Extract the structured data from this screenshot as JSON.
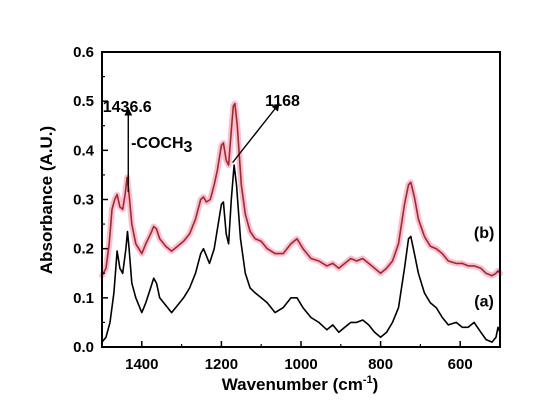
{
  "chart_data": {
    "type": "line",
    "title": "",
    "xlabel": "Wavenumber (cm",
    "xlabel_sup": "-1",
    "xlabel_close": ")",
    "ylabel": "Absorbance (A.U.)",
    "xlim": [
      1500,
      500
    ],
    "ylim": [
      0.0,
      0.6
    ],
    "x_inverted": true,
    "xticks": [
      1400,
      1200,
      1000,
      800,
      600
    ],
    "yticks": [
      0.0,
      0.1,
      0.2,
      0.3,
      0.4,
      0.5,
      0.6
    ],
    "ytick_labels": [
      "0.0",
      "0.1",
      "0.2",
      "0.3",
      "0.4",
      "0.5",
      "0.6"
    ],
    "grid": false,
    "series": [
      {
        "name": "(a)",
        "color": "#000000",
        "points": [
          [
            1500,
            0.01
          ],
          [
            1490,
            0.02
          ],
          [
            1480,
            0.05
          ],
          [
            1470,
            0.11
          ],
          [
            1462,
            0.195
          ],
          [
            1455,
            0.16
          ],
          [
            1448,
            0.15
          ],
          [
            1440,
            0.2
          ],
          [
            1436,
            0.235
          ],
          [
            1432,
            0.2
          ],
          [
            1425,
            0.13
          ],
          [
            1415,
            0.1
          ],
          [
            1400,
            0.07
          ],
          [
            1390,
            0.09
          ],
          [
            1378,
            0.12
          ],
          [
            1370,
            0.14
          ],
          [
            1363,
            0.13
          ],
          [
            1355,
            0.1
          ],
          [
            1340,
            0.085
          ],
          [
            1325,
            0.07
          ],
          [
            1310,
            0.085
          ],
          [
            1295,
            0.1
          ],
          [
            1280,
            0.12
          ],
          [
            1265,
            0.15
          ],
          [
            1252,
            0.19
          ],
          [
            1245,
            0.2
          ],
          [
            1240,
            0.19
          ],
          [
            1230,
            0.17
          ],
          [
            1218,
            0.2
          ],
          [
            1210,
            0.24
          ],
          [
            1200,
            0.29
          ],
          [
            1195,
            0.295
          ],
          [
            1188,
            0.23
          ],
          [
            1182,
            0.21
          ],
          [
            1175,
            0.3
          ],
          [
            1168,
            0.37
          ],
          [
            1162,
            0.33
          ],
          [
            1152,
            0.22
          ],
          [
            1140,
            0.15
          ],
          [
            1128,
            0.12
          ],
          [
            1115,
            0.11
          ],
          [
            1100,
            0.1
          ],
          [
            1085,
            0.09
          ],
          [
            1065,
            0.07
          ],
          [
            1045,
            0.08
          ],
          [
            1025,
            0.1
          ],
          [
            1010,
            0.1
          ],
          [
            995,
            0.08
          ],
          [
            975,
            0.06
          ],
          [
            955,
            0.05
          ],
          [
            935,
            0.035
          ],
          [
            920,
            0.045
          ],
          [
            905,
            0.03
          ],
          [
            890,
            0.04
          ],
          [
            875,
            0.05
          ],
          [
            860,
            0.05
          ],
          [
            845,
            0.055
          ],
          [
            830,
            0.045
          ],
          [
            815,
            0.03
          ],
          [
            800,
            0.02
          ],
          [
            785,
            0.03
          ],
          [
            770,
            0.05
          ],
          [
            755,
            0.08
          ],
          [
            740,
            0.16
          ],
          [
            730,
            0.22
          ],
          [
            724,
            0.225
          ],
          [
            715,
            0.19
          ],
          [
            705,
            0.15
          ],
          [
            690,
            0.11
          ],
          [
            675,
            0.09
          ],
          [
            660,
            0.08
          ],
          [
            645,
            0.06
          ],
          [
            630,
            0.045
          ],
          [
            610,
            0.05
          ],
          [
            595,
            0.04
          ],
          [
            580,
            0.04
          ],
          [
            565,
            0.05
          ],
          [
            548,
            0.03
          ],
          [
            535,
            0.015
          ],
          [
            520,
            0.01
          ],
          [
            510,
            0.02
          ],
          [
            505,
            0.04
          ],
          [
            500,
            0.03
          ]
        ]
      },
      {
        "name": "(b)",
        "color": "#b22222",
        "halo_color": "#f4c2d4",
        "points": [
          [
            1500,
            0.145
          ],
          [
            1490,
            0.16
          ],
          [
            1482,
            0.21
          ],
          [
            1475,
            0.28
          ],
          [
            1468,
            0.3
          ],
          [
            1462,
            0.31
          ],
          [
            1455,
            0.285
          ],
          [
            1448,
            0.28
          ],
          [
            1442,
            0.31
          ],
          [
            1437,
            0.345
          ],
          [
            1432,
            0.31
          ],
          [
            1425,
            0.25
          ],
          [
            1415,
            0.21
          ],
          [
            1400,
            0.19
          ],
          [
            1390,
            0.21
          ],
          [
            1378,
            0.23
          ],
          [
            1370,
            0.245
          ],
          [
            1363,
            0.24
          ],
          [
            1355,
            0.22
          ],
          [
            1340,
            0.205
          ],
          [
            1325,
            0.195
          ],
          [
            1310,
            0.205
          ],
          [
            1295,
            0.215
          ],
          [
            1280,
            0.23
          ],
          [
            1265,
            0.26
          ],
          [
            1252,
            0.3
          ],
          [
            1245,
            0.305
          ],
          [
            1238,
            0.295
          ],
          [
            1228,
            0.3
          ],
          [
            1218,
            0.33
          ],
          [
            1210,
            0.36
          ],
          [
            1200,
            0.41
          ],
          [
            1195,
            0.415
          ],
          [
            1188,
            0.38
          ],
          [
            1182,
            0.37
          ],
          [
            1175,
            0.44
          ],
          [
            1170,
            0.49
          ],
          [
            1166,
            0.495
          ],
          [
            1160,
            0.45
          ],
          [
            1150,
            0.33
          ],
          [
            1140,
            0.27
          ],
          [
            1128,
            0.235
          ],
          [
            1115,
            0.22
          ],
          [
            1100,
            0.215
          ],
          [
            1085,
            0.2
          ],
          [
            1065,
            0.19
          ],
          [
            1045,
            0.19
          ],
          [
            1025,
            0.21
          ],
          [
            1010,
            0.22
          ],
          [
            995,
            0.2
          ],
          [
            975,
            0.18
          ],
          [
            955,
            0.175
          ],
          [
            935,
            0.165
          ],
          [
            920,
            0.17
          ],
          [
            905,
            0.16
          ],
          [
            890,
            0.17
          ],
          [
            875,
            0.18
          ],
          [
            860,
            0.175
          ],
          [
            845,
            0.18
          ],
          [
            830,
            0.17
          ],
          [
            815,
            0.16
          ],
          [
            800,
            0.15
          ],
          [
            785,
            0.16
          ],
          [
            770,
            0.175
          ],
          [
            755,
            0.21
          ],
          [
            740,
            0.29
          ],
          [
            730,
            0.33
          ],
          [
            724,
            0.335
          ],
          [
            715,
            0.305
          ],
          [
            705,
            0.26
          ],
          [
            690,
            0.225
          ],
          [
            675,
            0.205
          ],
          [
            660,
            0.2
          ],
          [
            645,
            0.19
          ],
          [
            630,
            0.175
          ],
          [
            610,
            0.17
          ],
          [
            595,
            0.17
          ],
          [
            580,
            0.165
          ],
          [
            565,
            0.165
          ],
          [
            548,
            0.16
          ],
          [
            535,
            0.15
          ],
          [
            520,
            0.145
          ],
          [
            510,
            0.15
          ],
          [
            505,
            0.155
          ],
          [
            500,
            0.15
          ]
        ]
      }
    ],
    "annotations": [
      {
        "text": "1436.6",
        "x": 1436.6,
        "y": 0.478
      },
      {
        "text": "-COCH",
        "sub": "3",
        "x": 1432,
        "y": 0.405
      },
      {
        "text": "1168",
        "x": 1090,
        "y": 0.49
      }
    ],
    "arrows": [
      {
        "from": [
          1434,
          0.315
        ],
        "to": [
          1434,
          0.485
        ]
      },
      {
        "from": [
          1172,
          0.375
        ],
        "to": [
          1055,
          0.495
        ]
      }
    ],
    "series_labels": [
      {
        "text": "(b)",
        "x": 540,
        "y": 0.222
      },
      {
        "text": "(a)",
        "x": 540,
        "y": 0.082
      }
    ]
  }
}
